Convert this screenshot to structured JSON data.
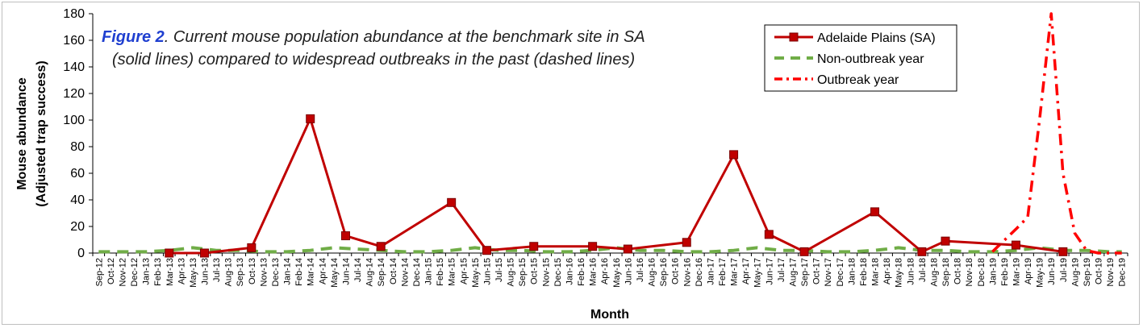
{
  "chart_data": {
    "type": "line",
    "annotation": {
      "lead": "Figure 2",
      "line1": ". Current mouse population abundance at the benchmark site in SA",
      "line2": "(solid lines) compared to widespread outbreaks in the past (dashed lines)"
    },
    "xlabel": "Month",
    "ylabel_line1": "Mouse abundance",
    "ylabel_line2": "(Adjusted trap success)",
    "ylim": [
      0,
      180
    ],
    "yticks": [
      0,
      20,
      40,
      60,
      80,
      100,
      120,
      140,
      160,
      180
    ],
    "grid": false,
    "legend_position": "top-right",
    "categories": [
      "Sep-12",
      "Oct-12",
      "Nov-12",
      "Dec-12",
      "Jan-13",
      "Feb-13",
      "Mar-13",
      "Apr-13",
      "May-13",
      "Jun-13",
      "Jul-13",
      "Aug-13",
      "Sep-13",
      "Oct-13",
      "Nov-13",
      "Dec-13",
      "Jan-14",
      "Feb-14",
      "Mar-14",
      "Apr-14",
      "May-14",
      "Jun-14",
      "Jul-14",
      "Aug-14",
      "Sep-14",
      "Oct-14",
      "Nov-14",
      "Dec-14",
      "Jan-15",
      "Feb-15",
      "Mar-15",
      "Apr-15",
      "May-15",
      "Jun-15",
      "Jul-15",
      "Aug-15",
      "Sep-15",
      "Oct-15",
      "Nov-15",
      "Dec-15",
      "Jan-16",
      "Feb-16",
      "Mar-16",
      "Apr-16",
      "May-16",
      "Jun-16",
      "Jul-16",
      "Aug-16",
      "Sep-16",
      "Oct-16",
      "Nov-16",
      "Dec-16",
      "Jan-17",
      "Feb-17",
      "Mar-17",
      "Apr-17",
      "May-17",
      "Jun-17",
      "Jul-17",
      "Aug-17",
      "Sep-17",
      "Oct-17",
      "Nov-17",
      "Dec-17",
      "Jan-18",
      "Feb-18",
      "Mar-18",
      "Apr-18",
      "May-18",
      "Jun-18",
      "Jul-18",
      "Aug-18",
      "Sep-18",
      "Oct-18",
      "Nov-18",
      "Dec-18",
      "Jan-19",
      "Feb-19",
      "Mar-19",
      "Apr-19",
      "May-19",
      "Jun-19",
      "Jul-19",
      "Aug-19",
      "Sep-19",
      "Oct-19",
      "Nov-19",
      "Dec-19"
    ],
    "series": [
      {
        "name": "Adelaide Plains (SA)",
        "color": "#c00000",
        "style": "solid-square-markers",
        "points": [
          [
            "Mar-13",
            0
          ],
          [
            "Jun-13",
            0
          ],
          [
            "Oct-13",
            4
          ],
          [
            "Mar-14",
            101
          ],
          [
            "Jun-14",
            13
          ],
          [
            "Sep-14",
            5
          ],
          [
            "Mar-15",
            38
          ],
          [
            "Jun-15",
            2
          ],
          [
            "Oct-15",
            5
          ],
          [
            "Mar-16",
            5
          ],
          [
            "Jun-16",
            3
          ],
          [
            "Nov-16",
            8
          ],
          [
            "Mar-17",
            74
          ],
          [
            "Jun-17",
            14
          ],
          [
            "Sep-17",
            1
          ],
          [
            "Mar-18",
            31
          ],
          [
            "Jul-18",
            1
          ],
          [
            "Sep-18",
            9
          ],
          [
            "Mar-19",
            6
          ],
          [
            "Jul-19",
            1
          ]
        ]
      },
      {
        "name": "Non-outbreak year",
        "color": "#70ad47",
        "style": "dashed",
        "points": [
          [
            "Sep-12",
            1
          ],
          [
            "Nov-12",
            1
          ],
          [
            "Jan-13",
            1
          ],
          [
            "Mar-13",
            2
          ],
          [
            "May-13",
            4
          ],
          [
            "Jul-13",
            2
          ],
          [
            "Sep-13",
            2
          ],
          [
            "Nov-13",
            1
          ],
          [
            "Jan-14",
            1
          ],
          [
            "Mar-14",
            2
          ],
          [
            "May-14",
            4
          ],
          [
            "Jul-14",
            3
          ],
          [
            "Sep-14",
            2
          ],
          [
            "Nov-14",
            1
          ],
          [
            "Jan-15",
            1
          ],
          [
            "Mar-15",
            2
          ],
          [
            "May-15",
            4
          ],
          [
            "Jul-15",
            2
          ],
          [
            "Sep-15",
            2
          ],
          [
            "Nov-15",
            1
          ],
          [
            "Jan-16",
            1
          ],
          [
            "Mar-16",
            2
          ],
          [
            "May-16",
            4
          ],
          [
            "Jul-16",
            2
          ],
          [
            "Sep-16",
            2
          ],
          [
            "Nov-16",
            1
          ],
          [
            "Jan-17",
            1
          ],
          [
            "Mar-17",
            2
          ],
          [
            "May-17",
            4
          ],
          [
            "Jul-17",
            2
          ],
          [
            "Sep-17",
            2
          ],
          [
            "Nov-17",
            1
          ],
          [
            "Jan-18",
            1
          ],
          [
            "Mar-18",
            2
          ],
          [
            "May-18",
            4
          ],
          [
            "Jul-18",
            2
          ],
          [
            "Sep-18",
            2
          ],
          [
            "Nov-18",
            1
          ],
          [
            "Jan-19",
            1
          ],
          [
            "Mar-19",
            2
          ],
          [
            "May-19",
            4
          ],
          [
            "Jul-19",
            2
          ],
          [
            "Sep-19",
            2
          ],
          [
            "Nov-19",
            1
          ],
          [
            "Dec-19",
            1
          ]
        ]
      },
      {
        "name": "Outbreak year",
        "color": "#ff0000",
        "style": "dash-dot",
        "points": [
          [
            "Jan-19",
            1
          ],
          [
            "Mar-19",
            18
          ],
          [
            "Apr-19",
            27
          ],
          [
            "May-19",
            100
          ],
          [
            "Jun-19",
            180
          ],
          [
            "Jul-19",
            60
          ],
          [
            "Aug-19",
            15
          ],
          [
            "Sep-19",
            2
          ],
          [
            "Oct-19",
            0
          ],
          [
            "Nov-19",
            0
          ],
          [
            "Dec-19",
            0
          ]
        ]
      }
    ]
  }
}
